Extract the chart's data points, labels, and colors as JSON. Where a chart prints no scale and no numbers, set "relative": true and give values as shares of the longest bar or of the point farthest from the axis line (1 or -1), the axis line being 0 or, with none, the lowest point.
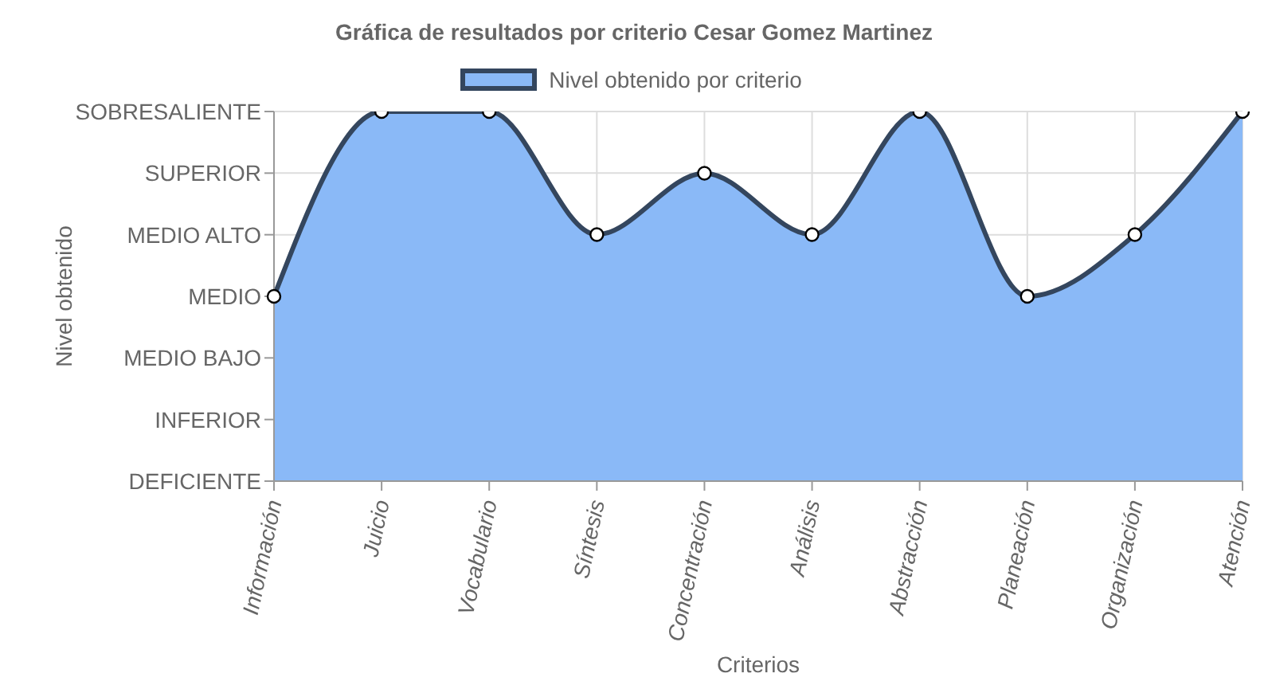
{
  "chart_data": {
    "type": "area",
    "title": "Gráfica de resultados por criterio Cesar Gomez Martinez",
    "xlabel": "Criterios",
    "categories": [
      "Información",
      "Juicio",
      "Vocabulario",
      "Síntesis",
      "Concentración",
      "Análisis",
      "Abstracción",
      "Planeación",
      "Organización",
      "Atención"
    ],
    "series": [
      {
        "name": "Nivel obtenido por criterio",
        "color": "#8ab9f7",
        "values": [
          0.5,
          1,
          1,
          0.667,
          0.833,
          0.667,
          1,
          0.5,
          0.667,
          1
        ]
      }
    ],
    "relative": true,
    "annotations": [
      "Nivel obtenido",
      "DEFICIENTE",
      "INFERIOR",
      "MEDIO BAJO",
      "MEDIO",
      "MEDIO ALTO",
      "SUPERIOR",
      "SOBRESALIENTE"
    ],
    "grid": true,
    "legend": "top",
    "marker": "circle",
    "line_style": "solid"
  }
}
